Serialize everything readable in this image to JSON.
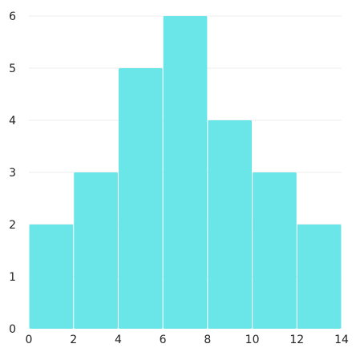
{
  "chart_data": {
    "type": "bar",
    "subtype": "histogram",
    "bins": [
      {
        "start": 0,
        "end": 2,
        "value": 2
      },
      {
        "start": 2,
        "end": 4,
        "value": 3
      },
      {
        "start": 4,
        "end": 6,
        "value": 5
      },
      {
        "start": 6,
        "end": 8,
        "value": 6
      },
      {
        "start": 8,
        "end": 10,
        "value": 4
      },
      {
        "start": 10,
        "end": 12,
        "value": 3
      },
      {
        "start": 12,
        "end": 14,
        "value": 2
      }
    ],
    "xlim": [
      0,
      14
    ],
    "ylim": [
      0,
      6
    ],
    "x_ticks": [
      "0",
      "2",
      "4",
      "6",
      "8",
      "10",
      "12",
      "14"
    ],
    "y_ticks": [
      "0",
      "1",
      "2",
      "3",
      "4",
      "5",
      "6"
    ],
    "title": "",
    "xlabel": "",
    "ylabel": "",
    "grid": "horizontal",
    "legend": "none",
    "colors": {
      "bar": "#6ae6e9",
      "grid": "#ececec",
      "text": "#222222"
    }
  }
}
